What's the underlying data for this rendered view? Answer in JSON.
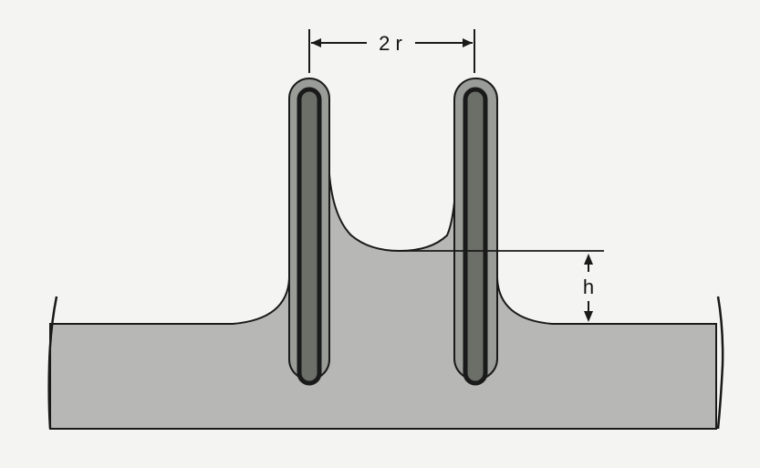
{
  "labels": {
    "width_label": "2 r",
    "height_label": "h"
  },
  "colors": {
    "background": "#f4f4f2",
    "liquid": "#b7b8b5",
    "tube_wall": "#777a75",
    "tube_core": "#6b6f68",
    "outline": "#1a1a1a"
  }
}
